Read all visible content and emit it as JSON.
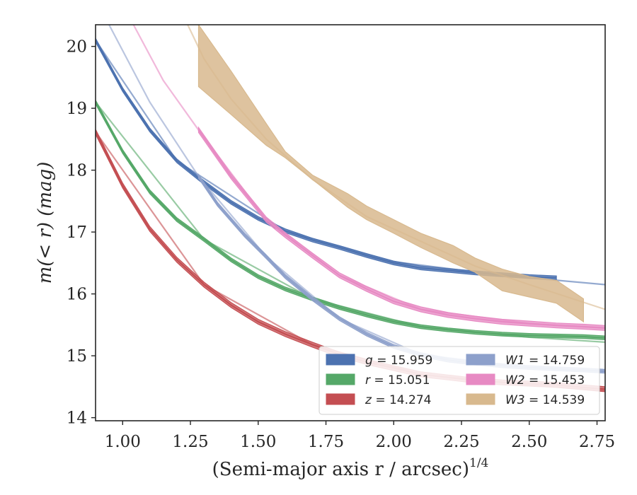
{
  "chart_data": {
    "type": "line",
    "xlabel": "(Semi-major axis r / arcsec)",
    "xlabel_exponent": "1/4",
    "ylabel": "m(< r) (mag)",
    "xlim": [
      0.9,
      2.78
    ],
    "ylim": [
      20.35,
      13.95
    ],
    "y_inverted": true,
    "xticks": [
      1.0,
      1.25,
      1.5,
      1.75,
      2.0,
      2.25,
      2.5,
      2.75
    ],
    "xtick_labels": [
      "1.00",
      "1.25",
      "1.50",
      "1.75",
      "2.00",
      "2.25",
      "2.50",
      "2.75"
    ],
    "yticks": [
      14,
      15,
      16,
      17,
      18,
      19,
      20
    ],
    "ytick_labels": [
      "14",
      "15",
      "16",
      "17",
      "18",
      "19",
      "20"
    ],
    "legend_position": "lower-right",
    "legend_columns": 2,
    "series": [
      {
        "name": "g = 15.959",
        "band": "g",
        "value": "15.959",
        "color": "#4c72b0",
        "band_width": 0.03,
        "x": [
          0.9,
          1.0,
          1.1,
          1.2,
          1.3,
          1.4,
          1.5,
          1.6,
          1.7,
          1.8,
          1.9,
          2.0,
          2.1,
          2.2,
          2.3,
          2.4,
          2.5,
          2.6
        ],
        "y": [
          20.1,
          19.3,
          18.65,
          18.15,
          17.8,
          17.48,
          17.22,
          17.02,
          16.87,
          16.75,
          16.62,
          16.5,
          16.42,
          16.38,
          16.34,
          16.31,
          16.28,
          16.26
        ],
        "model_x": [
          0.9,
          1.2,
          1.6,
          2.0,
          2.4,
          2.78
        ],
        "model_y": [
          20.1,
          18.15,
          17.02,
          16.52,
          16.3,
          16.15
        ]
      },
      {
        "name": "r = 15.051",
        "band": "r",
        "value": "15.051",
        "color": "#55a868",
        "band_width": 0.03,
        "x": [
          0.9,
          1.0,
          1.1,
          1.2,
          1.3,
          1.4,
          1.5,
          1.6,
          1.7,
          1.8,
          1.9,
          2.0,
          2.1,
          2.2,
          2.3,
          2.4,
          2.5,
          2.6,
          2.7,
          2.78
        ],
        "y": [
          19.1,
          18.3,
          17.65,
          17.2,
          16.88,
          16.55,
          16.28,
          16.08,
          15.92,
          15.78,
          15.66,
          15.55,
          15.47,
          15.42,
          15.38,
          15.35,
          15.33,
          15.32,
          15.31,
          15.29
        ],
        "model_x": [
          0.9,
          1.3,
          1.7,
          2.1,
          2.5,
          2.78
        ],
        "model_y": [
          19.1,
          16.88,
          15.92,
          15.47,
          15.3,
          15.22
        ]
      },
      {
        "name": "z = 14.274",
        "band": "z",
        "value": "14.274",
        "color": "#c44e52",
        "band_width": 0.04,
        "x": [
          0.9,
          1.0,
          1.1,
          1.2,
          1.3,
          1.4,
          1.5,
          1.6,
          1.7,
          1.8,
          1.9,
          2.0,
          2.1,
          2.2,
          2.3,
          2.4,
          2.5,
          2.6,
          2.7,
          2.78
        ],
        "y": [
          18.62,
          17.75,
          17.05,
          16.55,
          16.15,
          15.82,
          15.55,
          15.35,
          15.18,
          15.02,
          14.9,
          14.8,
          14.7,
          14.65,
          14.6,
          14.57,
          14.55,
          14.53,
          14.49,
          14.46
        ],
        "model_x": [
          0.9,
          1.3,
          1.7,
          2.1,
          2.5,
          2.78
        ],
        "model_y": [
          18.62,
          16.15,
          15.18,
          14.7,
          14.53,
          14.43
        ]
      },
      {
        "name": "W1 = 14.759",
        "band": "W1",
        "value": "14.759",
        "color": "#8da0cb",
        "band_width": 0.03,
        "x": [
          1.28,
          1.35,
          1.45,
          1.53,
          1.6,
          1.7,
          1.8,
          1.9,
          2.0,
          2.1,
          2.2,
          2.3,
          2.4,
          2.5,
          2.6,
          2.7,
          2.78
        ],
        "y": [
          17.9,
          17.45,
          16.95,
          16.6,
          16.28,
          15.92,
          15.6,
          15.35,
          15.15,
          15.02,
          14.93,
          14.88,
          14.84,
          14.81,
          14.79,
          14.77,
          14.75
        ],
        "model_x": [
          0.95,
          1.1,
          1.28,
          1.53,
          1.8,
          2.1,
          2.5,
          2.78
        ],
        "model_y": [
          20.35,
          19.1,
          17.9,
          16.6,
          15.6,
          15.02,
          14.81,
          14.75
        ]
      },
      {
        "name": "W2 = 15.453",
        "band": "W2",
        "value": "15.453",
        "color": "#e78ac3",
        "band_width": 0.04,
        "x": [
          1.28,
          1.4,
          1.53,
          1.6,
          1.7,
          1.8,
          1.9,
          2.0,
          2.1,
          2.2,
          2.3,
          2.4,
          2.5,
          2.6,
          2.7,
          2.78
        ],
        "y": [
          18.65,
          17.9,
          17.2,
          16.95,
          16.62,
          16.3,
          16.08,
          15.88,
          15.75,
          15.66,
          15.6,
          15.55,
          15.52,
          15.49,
          15.47,
          15.45
        ],
        "model_x": [
          1.04,
          1.15,
          1.28,
          1.53,
          1.8,
          2.1,
          2.5,
          2.78
        ],
        "model_y": [
          20.35,
          19.45,
          18.65,
          17.2,
          16.3,
          15.75,
          15.52,
          15.45
        ]
      },
      {
        "name": "W3 = 14.539",
        "band": "W3",
        "value": "14.539",
        "color": "#d8b98e",
        "x": [
          1.28,
          1.4,
          1.53,
          1.6,
          1.7,
          1.83,
          1.9,
          2.0,
          2.1,
          2.22,
          2.3,
          2.4,
          2.5,
          2.6,
          2.7
        ],
        "y_low": [
          19.35,
          18.9,
          18.4,
          18.2,
          17.85,
          17.4,
          17.2,
          16.98,
          16.75,
          16.5,
          16.35,
          16.05,
          15.95,
          15.85,
          15.55
        ],
        "y_high": [
          20.35,
          19.6,
          18.75,
          18.3,
          17.92,
          17.62,
          17.42,
          17.2,
          16.98,
          16.78,
          16.58,
          16.4,
          16.28,
          16.22,
          15.92
        ],
        "model_x": [
          1.24,
          1.3,
          1.4,
          1.53,
          1.7,
          1.9,
          2.1,
          2.3,
          2.5,
          2.78
        ],
        "model_y": [
          20.35,
          19.8,
          19.15,
          18.5,
          17.85,
          17.25,
          16.85,
          16.45,
          16.15,
          15.75
        ]
      }
    ]
  }
}
